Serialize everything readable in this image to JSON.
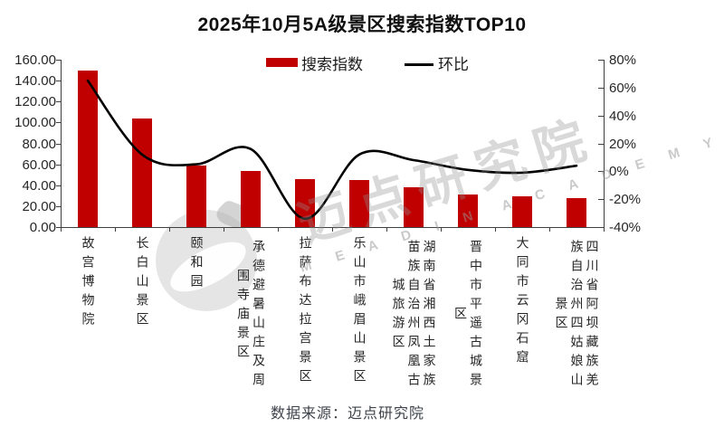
{
  "title": "2025年10月5A级景区搜索指数TOP10",
  "legend": {
    "bar_label": "搜索指数",
    "line_label": "环比"
  },
  "caption": "数据来源：迈点研究院",
  "watermark": {
    "logo": "meadin-circle-logo",
    "cn": "迈点研究院",
    "en_word1": "M E A D I N",
    "en_word2": "A C A D E M Y"
  },
  "colors": {
    "bar": "#C00000",
    "line": "#000000",
    "axis": "#3f3f3f",
    "text": "#262626",
    "caption": "#3e434b",
    "watermark_gray": "#9c9c9c"
  },
  "chart_data": {
    "type": "bar",
    "title": "2025年10月5A级景区搜索指数TOP10",
    "legend_position": "top",
    "grid": false,
    "categories": [
      "故宫博物院",
      "长白山景区",
      "颐和园",
      "承德避暑山庄及周围寺庙景区",
      "拉萨布达拉宫景区",
      "乐山市峨眉山景区",
      "湖南省湘西土家族苗族自治州凤凰古城旅游区",
      "晋中市平遥古城景区",
      "大同市云冈石窟",
      "四川省阿坝藏族羌族自治州四姑娘山景区"
    ],
    "category_columns": [
      [
        "故宫博物院"
      ],
      [
        "长白山景区"
      ],
      [
        "颐和园"
      ],
      [
        "承德避暑山庄及周",
        "围寺庙景区"
      ],
      [
        "拉萨布达拉宫景区"
      ],
      [
        "乐山市峨眉山景区"
      ],
      [
        "湖南省湘西土家族",
        "苗族自治州凤凰古",
        "城旅游区"
      ],
      [
        "晋中市平遥古城景",
        "区"
      ],
      [
        "大同市云冈石窟"
      ],
      [
        "四川省阿坝藏族羌",
        "族自治州四姑娘山",
        "景区"
      ]
    ],
    "series": [
      {
        "name": "搜索指数",
        "type": "bar",
        "axis": "left",
        "values": [
          150,
          104,
          59,
          54,
          46,
          45,
          38,
          31,
          29,
          28
        ]
      },
      {
        "name": "环比",
        "type": "line",
        "axis": "right",
        "values_pct": [
          65,
          12,
          5,
          16,
          -34,
          12,
          8,
          1,
          -1,
          4
        ]
      }
    ],
    "left_axis": {
      "min": 0,
      "max": 160,
      "step": 20,
      "tick_labels": [
        "160.00",
        "140.00",
        "120.00",
        "100.00",
        "80.00",
        "60.00",
        "40.00",
        "20.00",
        "0.00"
      ]
    },
    "right_axis": {
      "min": -40,
      "max": 80,
      "step": 20,
      "tick_labels": [
        "80%",
        "60%",
        "40%",
        "20%",
        "0%",
        "-20%",
        "-40%"
      ]
    }
  }
}
